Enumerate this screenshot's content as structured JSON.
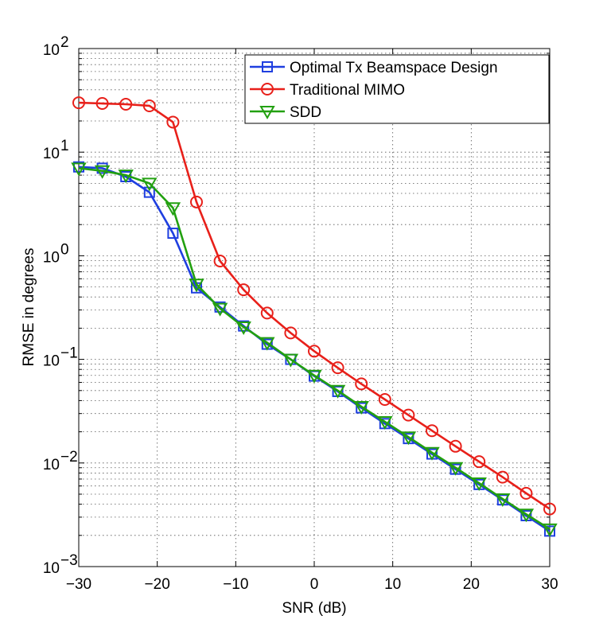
{
  "chart_data": {
    "type": "line",
    "title": "",
    "xlabel": "SNR (dB)",
    "ylabel": "RMSE in degrees",
    "xlim": [
      -30,
      30
    ],
    "ylim": [
      0.001,
      100
    ],
    "yscale": "log",
    "grid": true,
    "x_ticks": [
      -30,
      -20,
      -10,
      0,
      10,
      20,
      30
    ],
    "x_tick_labels": [
      "−30",
      "−20",
      "−10",
      "0",
      "10",
      "20",
      "30"
    ],
    "y_ticks": [
      {
        "value": 0.001,
        "base": "10",
        "exp": "−3"
      },
      {
        "value": 0.01,
        "base": "10",
        "exp": "−2"
      },
      {
        "value": 0.1,
        "base": "10",
        "exp": "−1"
      },
      {
        "value": 1,
        "base": "10",
        "exp": "0"
      },
      {
        "value": 10,
        "base": "10",
        "exp": "1"
      },
      {
        "value": 100,
        "base": "10",
        "exp": "2"
      }
    ],
    "legend_position": "top-right",
    "x": [
      -30,
      -27,
      -24,
      -21,
      -18,
      -15,
      -12,
      -9,
      -6,
      -3,
      0,
      3,
      6,
      9,
      12,
      15,
      18,
      21,
      24,
      27,
      30
    ],
    "series": [
      {
        "name": "Optimal Tx Beamspace Design",
        "color": "#1f3fe0",
        "marker": "square",
        "values": [
          7.2,
          7.0,
          5.8,
          4.1,
          1.65,
          0.49,
          0.32,
          0.21,
          0.14,
          0.1,
          0.069,
          0.049,
          0.034,
          0.024,
          0.0172,
          0.0122,
          0.0087,
          0.0062,
          0.0044,
          0.0031,
          0.0022
        ]
      },
      {
        "name": "Traditional MIMO",
        "color": "#e8201a",
        "marker": "circle",
        "values": [
          30,
          29.5,
          29,
          28,
          19.5,
          3.3,
          0.89,
          0.47,
          0.28,
          0.18,
          0.12,
          0.083,
          0.058,
          0.041,
          0.029,
          0.0205,
          0.0145,
          0.0103,
          0.0073,
          0.0051,
          0.0036
        ]
      },
      {
        "name": "SDD",
        "color": "#22a010",
        "marker": "triangle-down",
        "values": [
          7.0,
          6.6,
          6.0,
          5.0,
          2.9,
          0.53,
          0.31,
          0.205,
          0.145,
          0.1,
          0.07,
          0.05,
          0.035,
          0.025,
          0.0178,
          0.0126,
          0.009,
          0.0064,
          0.0045,
          0.0032,
          0.0023
        ]
      }
    ]
  }
}
